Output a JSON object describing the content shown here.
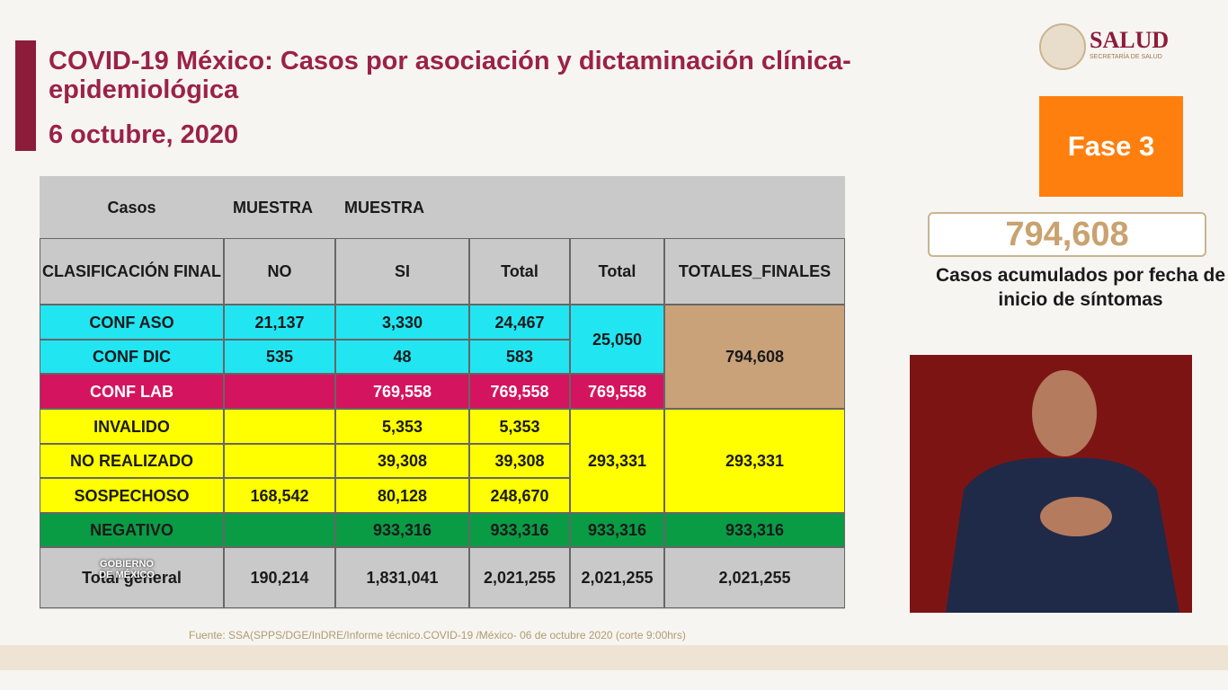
{
  "header": {
    "title": "COVID-19 México: Casos por asociación y dictaminación clínica-epidemiológica",
    "date": "6 octubre, 2020",
    "logo": "SALUD",
    "logo_sub": "SECRETARÍA DE SALUD"
  },
  "side": {
    "phase": "Fase 3",
    "total": "794,608",
    "caption": "Casos acumulados por fecha de inicio de síntomas"
  },
  "table": {
    "header_row1": [
      "Casos",
      "MUESTRA",
      "MUESTRA"
    ],
    "header_row2": [
      "CLASIFICACIÓN FINAL",
      "NO",
      "SI",
      "Total",
      "Total",
      "TOTALES_FINALES"
    ],
    "rows": [
      {
        "label": "CONF ASO",
        "no": "21,137",
        "si": "3,330",
        "total": "24,467"
      },
      {
        "label": "CONF DIC",
        "no": "535",
        "si": "48",
        "total": "583"
      },
      {
        "label": "CONF LAB",
        "si": "769,558",
        "total": "769,558"
      },
      {
        "label": "INVALIDO",
        "si": "5,353",
        "total": "5,353"
      },
      {
        "label": "NO REALIZADO",
        "si": "39,308",
        "total": "39,308"
      },
      {
        "label": "SOSPECHOSO",
        "no": "168,542",
        "si": "80,128",
        "total": "248,670"
      },
      {
        "label": "NEGATIVO",
        "si": "933,316",
        "total": "933,316"
      },
      {
        "label": "Total general",
        "no": "190,214",
        "si": "1,831,041",
        "total": "2,021,255"
      }
    ],
    "group_totals": [
      "25,050",
      "769,558",
      "293,331",
      "933,316",
      "2,021,255"
    ],
    "final_totals": [
      "794,608",
      "293,331",
      "933,316",
      "2,021,255"
    ]
  },
  "footer": {
    "source": "Fuente: SSA(SPPS/DGE/InDRE/Informe técnico.COVID-19 /México- 06 de octubre  2020 (corte 9:00hrs)",
    "watermark": "GOBIERNO DE MÉXICO"
  }
}
